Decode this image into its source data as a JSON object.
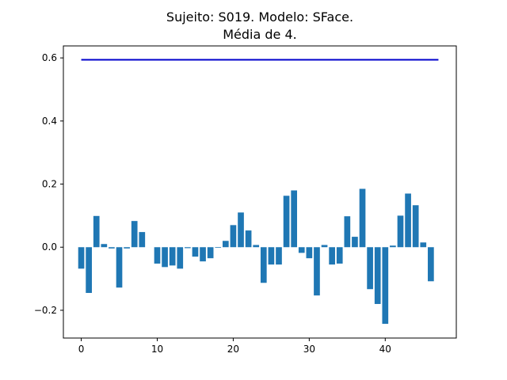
{
  "chart_data": {
    "type": "bar",
    "title_line1": "Sujeito: S019. Modelo: SFace.",
    "title_line2": "Média de 4.",
    "x": [
      0,
      1,
      2,
      3,
      4,
      5,
      6,
      7,
      8,
      9,
      10,
      11,
      12,
      13,
      14,
      15,
      16,
      17,
      18,
      19,
      20,
      21,
      22,
      23,
      24,
      25,
      26,
      27,
      28,
      29,
      30,
      31,
      32,
      33,
      34,
      35,
      36,
      37,
      38,
      39,
      40,
      41,
      42,
      43,
      44,
      45,
      46
    ],
    "values": [
      -0.068,
      -0.145,
      0.099,
      0.01,
      -0.004,
      -0.128,
      -0.004,
      0.083,
      0.048,
      0,
      -0.052,
      -0.063,
      -0.058,
      -0.068,
      -0.003,
      -0.03,
      -0.045,
      -0.035,
      -0.002,
      0.02,
      0.07,
      0.11,
      0.053,
      0.007,
      -0.113,
      -0.055,
      -0.055,
      0.163,
      0.18,
      -0.018,
      -0.035,
      -0.153,
      0.007,
      -0.055,
      -0.052,
      0.098,
      0.033,
      0.185,
      -0.133,
      -0.18,
      -0.243,
      0.005,
      0.1,
      0.17,
      0.133,
      0.015,
      -0.108
    ],
    "threshold_line": {
      "value": 0.594,
      "x_start": 0,
      "x_end": 47,
      "color": "#0000cc"
    },
    "bar_color": "#1f77b4",
    "xlim": [
      -2.35,
      49.35
    ],
    "ylim": [
      -0.288,
      0.638
    ],
    "xticks": [
      0,
      10,
      20,
      30,
      40
    ],
    "xtick_labels": [
      "0",
      "10",
      "20",
      "30",
      "40"
    ],
    "yticks": [
      -0.2,
      0.0,
      0.2,
      0.4,
      0.6
    ],
    "ytick_labels": [
      "−0.2",
      "0.0",
      "0.2",
      "0.4",
      "0.6"
    ],
    "grid": false,
    "legend": "none"
  }
}
